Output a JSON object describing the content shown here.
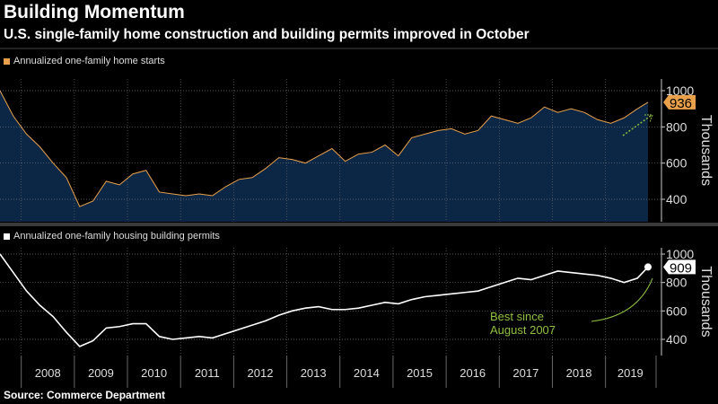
{
  "title": "Building Momentum",
  "subtitle": "U.S. single-family home construction and building permits improved in October",
  "source": "Source: Commerce Department",
  "colors": {
    "starts": "#e8a04a",
    "starts_fill": "#0c2745",
    "permits": "#ffffff",
    "annotation": "#8fbf3f"
  },
  "chart_data": [
    {
      "type": "area",
      "legend": "Annualized one-family home starts",
      "ylabel": "Thousands",
      "ylim": [
        280,
        1060
      ],
      "yticks": [
        400,
        600,
        800,
        1000
      ],
      "last_value_label": "936",
      "x": [
        2007.6,
        2007.85,
        2008.1,
        2008.35,
        2008.6,
        2008.85,
        2009.1,
        2009.35,
        2009.6,
        2009.85,
        2010.1,
        2010.35,
        2010.6,
        2010.85,
        2011.1,
        2011.35,
        2011.6,
        2011.85,
        2012.1,
        2012.35,
        2012.6,
        2012.85,
        2013.1,
        2013.35,
        2013.6,
        2013.85,
        2014.1,
        2014.35,
        2014.6,
        2014.85,
        2015.1,
        2015.35,
        2015.6,
        2015.85,
        2016.1,
        2016.35,
        2016.6,
        2016.85,
        2017.1,
        2017.35,
        2017.6,
        2017.85,
        2018.1,
        2018.35,
        2018.6,
        2018.85,
        2019.1,
        2019.35,
        2019.6,
        2019.8
      ],
      "values": [
        1000,
        860,
        760,
        690,
        600,
        520,
        360,
        390,
        500,
        480,
        540,
        560,
        440,
        430,
        420,
        430,
        420,
        470,
        510,
        520,
        570,
        630,
        620,
        600,
        640,
        680,
        610,
        650,
        660,
        700,
        640,
        740,
        760,
        780,
        790,
        760,
        780,
        860,
        840,
        820,
        850,
        910,
        880,
        900,
        880,
        840,
        820,
        850,
        900,
        936
      ]
    },
    {
      "type": "line",
      "legend": "Annualized one-family housing building permits",
      "ylabel": "Thousands",
      "ylim": [
        290,
        1060
      ],
      "yticks": [
        400,
        600,
        800,
        1000
      ],
      "last_value_label": "909",
      "annotation": "Best since August 2007",
      "annotation_lines": [
        "Best since",
        "August 2007"
      ],
      "x": [
        2007.6,
        2007.85,
        2008.1,
        2008.35,
        2008.6,
        2008.85,
        2009.1,
        2009.35,
        2009.6,
        2009.85,
        2010.1,
        2010.35,
        2010.6,
        2010.85,
        2011.1,
        2011.35,
        2011.6,
        2011.85,
        2012.1,
        2012.35,
        2012.6,
        2012.85,
        2013.1,
        2013.35,
        2013.6,
        2013.85,
        2014.1,
        2014.35,
        2014.6,
        2014.85,
        2015.1,
        2015.35,
        2015.6,
        2015.85,
        2016.1,
        2016.35,
        2016.6,
        2016.85,
        2017.1,
        2017.35,
        2017.6,
        2017.85,
        2018.1,
        2018.35,
        2018.6,
        2018.85,
        2019.1,
        2019.35,
        2019.6,
        2019.8
      ],
      "values": [
        1000,
        870,
        740,
        640,
        560,
        450,
        350,
        390,
        480,
        490,
        510,
        510,
        420,
        400,
        410,
        420,
        410,
        440,
        470,
        500,
        530,
        570,
        600,
        620,
        630,
        610,
        610,
        620,
        640,
        660,
        650,
        680,
        700,
        710,
        720,
        730,
        740,
        770,
        800,
        830,
        820,
        850,
        880,
        870,
        860,
        850,
        830,
        800,
        830,
        909
      ]
    }
  ],
  "years": [
    "2008",
    "2009",
    "2010",
    "2011",
    "2012",
    "2013",
    "2014",
    "2015",
    "2016",
    "2017",
    "2018",
    "2019"
  ]
}
